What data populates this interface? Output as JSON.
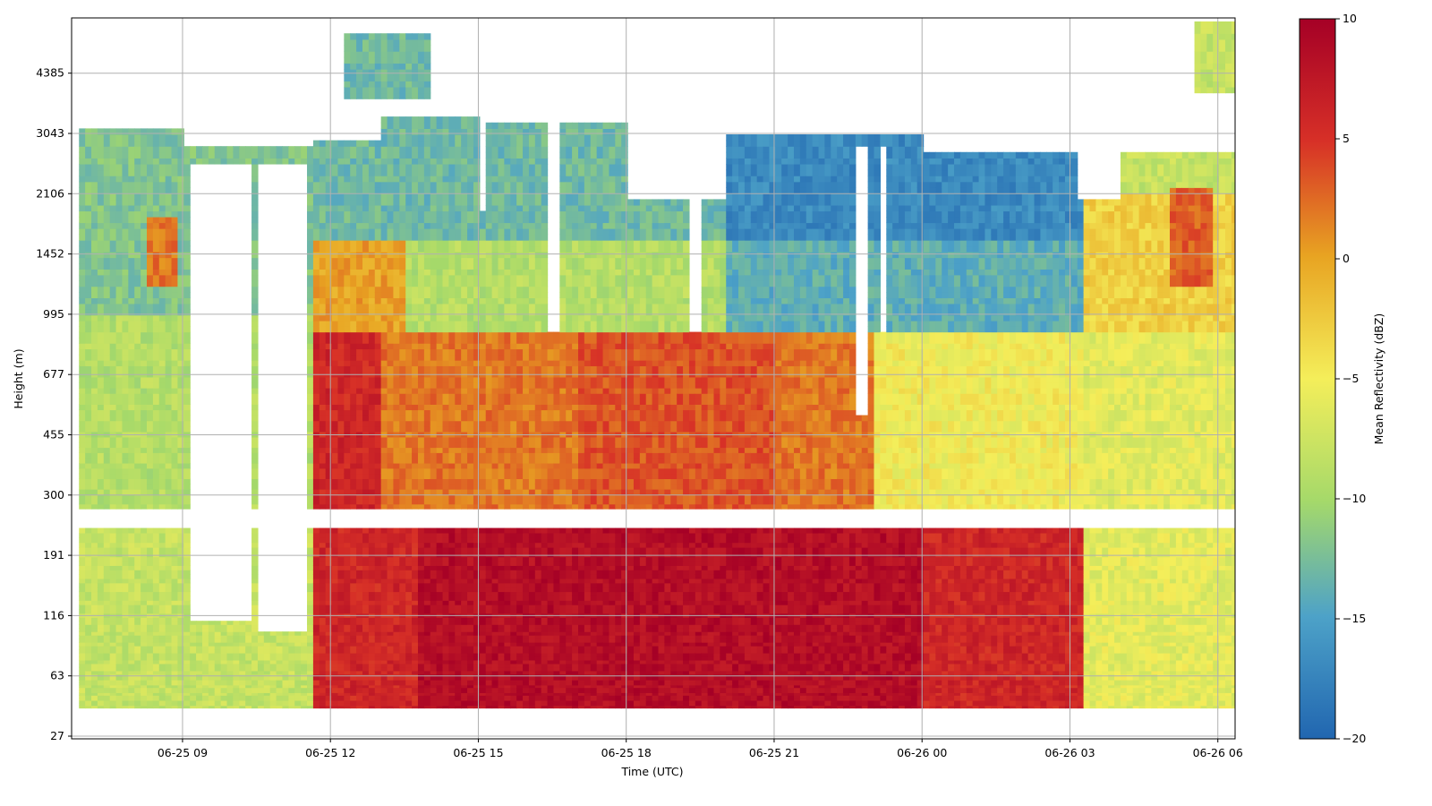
{
  "chart_data": {
    "type": "heatmap",
    "title": "",
    "xlabel": "Time (UTC)",
    "ylabel": "Height (m)",
    "colorbar_label": "Mean Reflectivity (dBZ)",
    "colormap": "RdYlBu_r",
    "grid": true,
    "x_ticks": [
      "06-25 09",
      "06-25 12",
      "06-25 15",
      "06-25 18",
      "06-25 21",
      "06-26 00",
      "06-26 03",
      "06-26 06"
    ],
    "x_tick_hours": [
      9,
      12,
      15,
      18,
      21,
      24,
      27,
      30
    ],
    "xlim_hours": [
      6.75,
      30.35
    ],
    "y_ticks": [
      "27",
      "63",
      "116",
      "191",
      "300",
      "455",
      "677",
      "995",
      "1452",
      "2106",
      "3043",
      "4385"
    ],
    "y_tick_values": [
      27,
      63,
      116,
      191,
      300,
      455,
      677,
      995,
      1452,
      2106,
      3043,
      4385
    ],
    "clim": [
      -20,
      10
    ],
    "colorbar_ticks": [
      "10",
      "5",
      "0",
      "−5",
      "−10",
      "−15",
      "−20"
    ],
    "colorbar_tick_values": [
      10,
      5,
      0,
      -5,
      -10,
      -15,
      -20
    ],
    "regimes": [
      {
        "period": "06-25 07 to 06-25 11",
        "upper_dbz": -10,
        "lower_dbz": -8,
        "cloud_top_m": 3100
      },
      {
        "period": "06-25 11.5 to 06-26 03",
        "upper_dbz": -13,
        "lower_dbz": 6,
        "cloud_top_m": 3300
      },
      {
        "period": "06-26 03.5 to 06-26 06",
        "upper_dbz": -5,
        "lower_dbz": -7,
        "cloud_top_m": 2700
      }
    ]
  }
}
